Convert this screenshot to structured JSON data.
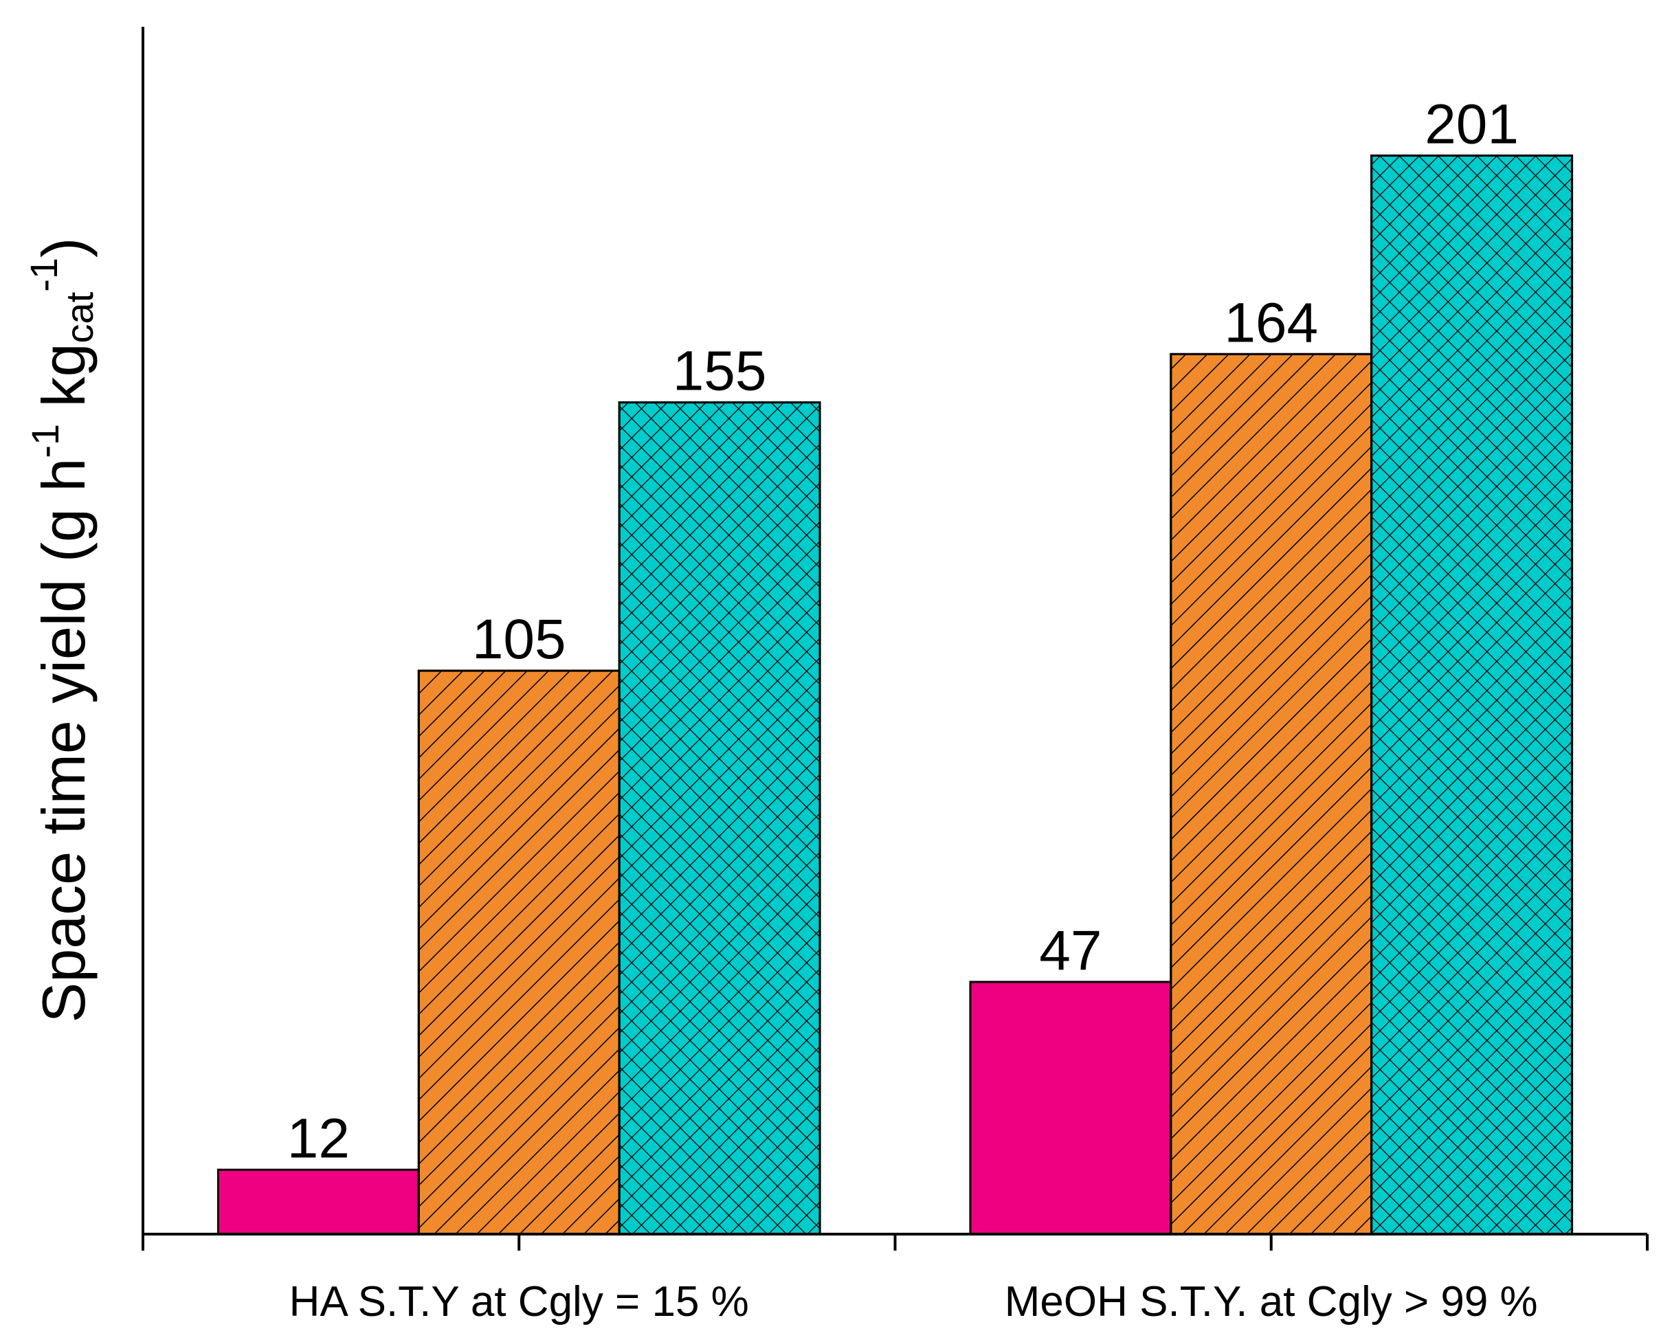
{
  "chart_data": {
    "type": "bar",
    "y_label": {
      "parts": [
        "Space time yield (g h",
        "-1",
        " kg",
        "cat",
        "-1",
        ")"
      ]
    },
    "categories": [
      "HA S.T.Y at Cgly = 15 %",
      "MeOH S.T.Y. at Cgly > 99 %"
    ],
    "series": [
      {
        "color": "#ee0080",
        "hatch": "none",
        "values": [
          12,
          47
        ]
      },
      {
        "color": "#f08a2c",
        "hatch": "diagonal",
        "values": [
          105,
          164
        ]
      },
      {
        "color": "#00cccc",
        "hatch": "cross",
        "values": [
          155,
          201
        ]
      }
    ],
    "ylim": [
      0,
      225
    ]
  }
}
